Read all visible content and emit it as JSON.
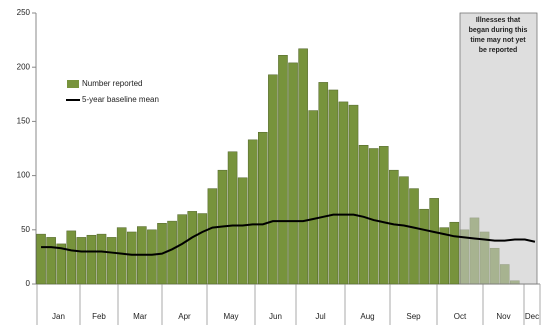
{
  "chart_data": {
    "type": "bar",
    "categories": [
      null,
      null,
      null,
      null,
      null,
      null,
      null,
      null,
      null,
      null,
      null,
      null,
      null,
      null,
      null,
      null,
      null,
      null,
      null,
      null,
      null,
      null,
      null,
      null,
      null,
      null,
      null,
      null,
      null,
      null,
      null,
      null,
      null,
      null,
      null,
      null,
      null,
      null,
      null,
      null,
      null,
      null,
      null,
      null,
      null,
      null,
      null,
      null,
      null,
      null
    ],
    "months": [
      "Jan",
      "Feb",
      "Mar",
      "Apr",
      "May",
      "Jun",
      "Jul",
      "Aug",
      "Sep",
      "Oct",
      "Nov",
      "Dec"
    ],
    "series": [
      {
        "name": "Number reported",
        "color": "#77933c",
        "values": [
          46,
          43,
          37,
          49,
          43,
          45,
          46,
          43,
          52,
          48,
          53,
          50,
          56,
          58,
          64,
          67,
          65,
          88,
          105,
          122,
          98,
          133,
          140,
          193,
          211,
          204,
          217,
          160,
          186,
          179,
          168,
          165,
          128,
          125,
          127,
          105,
          99,
          88,
          69,
          79,
          52,
          57,
          50,
          61,
          48,
          33,
          18,
          3,
          null,
          null
        ]
      },
      {
        "name": "5-year baseline mean",
        "color": "#000000",
        "line": true,
        "values": [
          34,
          34,
          33,
          31,
          30,
          30,
          30,
          29,
          28,
          27,
          27,
          27,
          28,
          32,
          37,
          43,
          48,
          52,
          53,
          54,
          54,
          55,
          55,
          58,
          58,
          58,
          58,
          60,
          62,
          64,
          64,
          64,
          62,
          59,
          57,
          55,
          54,
          52,
          50,
          48,
          46,
          44,
          43,
          42,
          41,
          40,
          40,
          41,
          41,
          39
        ]
      }
    ],
    "annotation": [
      "Illnesses that",
      "began during this",
      "time may not yet",
      "be reported"
    ],
    "ylim": [
      0,
      250
    ],
    "yticks": [
      0,
      50,
      100,
      150,
      200,
      250
    ]
  }
}
